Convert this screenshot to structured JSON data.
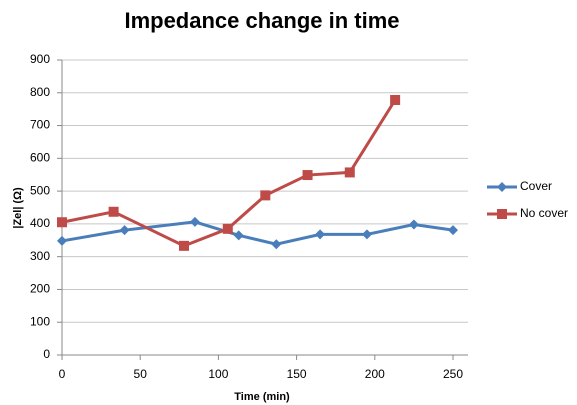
{
  "chart_data": {
    "type": "line",
    "title": "Impedance change in time",
    "xlabel": "Time (min)",
    "ylabel": "|Zel| (Ω)",
    "series": [
      {
        "name": "Cover",
        "color": "#4a7ebb",
        "marker": "diamond",
        "x": [
          0,
          40,
          85,
          113,
          137,
          165,
          195,
          225,
          250
        ],
        "values": [
          348,
          381,
          406,
          365,
          338,
          368,
          368,
          398,
          381
        ]
      },
      {
        "name": "No cover",
        "color": "#be4b48",
        "marker": "square",
        "x": [
          0,
          33,
          78,
          106,
          130,
          157,
          184,
          213
        ],
        "values": [
          405,
          437,
          333,
          385,
          487,
          549,
          557,
          778
        ]
      }
    ],
    "xlim": [
      0,
      250
    ],
    "xticks": [
      0,
      50,
      100,
      150,
      200,
      250
    ],
    "ylim": [
      0,
      900
    ],
    "yticks": [
      0,
      100,
      200,
      300,
      400,
      500,
      600,
      700,
      800,
      900
    ],
    "grid": true,
    "legend": "right"
  }
}
